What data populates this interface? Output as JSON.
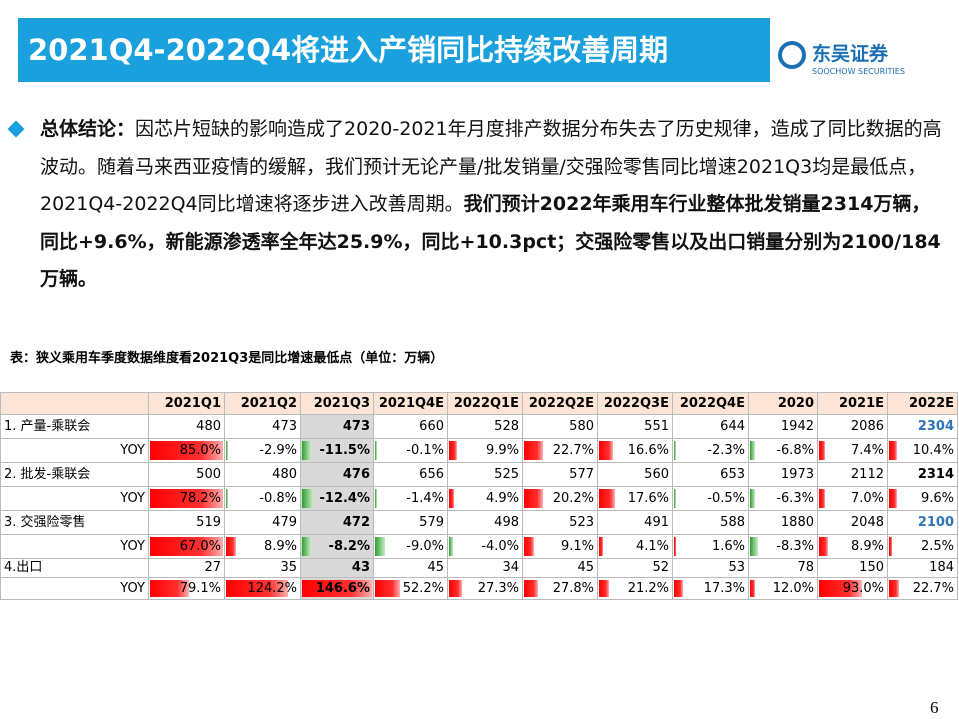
{
  "header": {
    "title": "2021Q4-2022Q4将进入产销同比持续改善周期",
    "logo_cn": "东吴证券",
    "logo_en": "SOOCHOW SECURITIES"
  },
  "summary": {
    "label": "总体结论：",
    "text": "因芯片短缺的影响造成了2020-2021年月度排产数据分布失去了历史规律，造成了同比数据的高波动。随着马来西亚疫情的缓解，我们预计无论产量/批发销量/交强险零售同比增速2021Q3均是最低点，2021Q4-2022Q4同比增速将逐步进入改善周期。",
    "bold": "我们预计2022年乘用车行业整体批发销量2314万辆，同比+9.6%，新能源渗透率全年达25.9%，同比+10.3pct；交强险零售以及出口销量分别为2100/184万辆。"
  },
  "table": {
    "caption": "表：狭义乘用车季度数据维度看2021Q3是同比增速最低点（单位：万辆）",
    "columns": [
      "2021Q1",
      "2021Q2",
      "2021Q3",
      "2021Q4E",
      "2022Q1E",
      "2022Q2E",
      "2022Q3E",
      "2022Q4E",
      "2020",
      "2021E",
      "2022E"
    ],
    "groups": [
      {
        "label": "1. 产量-乘联会",
        "values": [
          480,
          473,
          473,
          660,
          528,
          580,
          551,
          644,
          1942,
          2086,
          2304
        ],
        "yoy": {
          "label": "YOY",
          "values": [
            85.0,
            -2.9,
            -11.5,
            -0.1,
            9.9,
            22.7,
            16.6,
            -2.3,
            -6.8,
            7.4,
            10.4
          ],
          "value_labels": [
            "85.0%",
            "-2.9%",
            "-11.5%",
            "-0.1%",
            "9.9%",
            "22.7%",
            "16.6%",
            "-2.3%",
            "-6.8%",
            "7.4%",
            "10.4%"
          ]
        }
      },
      {
        "label": "2. 批发-乘联会",
        "values": [
          500,
          480,
          476,
          656,
          525,
          577,
          560,
          653,
          1973,
          2112,
          2314
        ],
        "yoy": {
          "label": "YOY",
          "values": [
            78.2,
            -0.8,
            -12.4,
            -1.4,
            4.9,
            20.2,
            17.6,
            -0.5,
            -6.3,
            7.0,
            9.6
          ],
          "value_labels": [
            "78.2%",
            "-0.8%",
            "-12.4%",
            "-1.4%",
            "4.9%",
            "20.2%",
            "17.6%",
            "-0.5%",
            "-6.3%",
            "7.0%",
            "9.6%"
          ]
        }
      },
      {
        "label": "3. 交强险零售",
        "values": [
          519,
          479,
          472,
          579,
          498,
          523,
          491,
          588,
          1880,
          2048,
          2100
        ],
        "yoy": {
          "label": "YOY",
          "values": [
            67.0,
            8.9,
            -8.2,
            -9.0,
            -4.0,
            9.1,
            4.1,
            1.6,
            -8.3,
            8.9,
            2.5
          ],
          "value_labels": [
            "67.0%",
            "8.9%",
            "-8.2%",
            "-9.0%",
            "-4.0%",
            "9.1%",
            "4.1%",
            "1.6%",
            "-8.3%",
            "8.9%",
            "2.5%"
          ]
        }
      },
      {
        "label": "4.出口",
        "values": [
          27,
          35,
          43,
          45,
          34,
          45,
          52,
          53,
          78,
          150,
          184
        ],
        "yoy": {
          "label": "YOY",
          "values": [
            79.1,
            124.2,
            146.6,
            52.2,
            27.3,
            27.8,
            21.2,
            17.3,
            12.0,
            93.0,
            22.7
          ],
          "value_labels": [
            "79.1%",
            "124.2%",
            "146.6%",
            "52.2%",
            "27.3%",
            "27.8%",
            "21.2%",
            "17.3%",
            "12.0%",
            "93.0%",
            "22.7%"
          ]
        }
      }
    ]
  },
  "page_number": "6"
}
